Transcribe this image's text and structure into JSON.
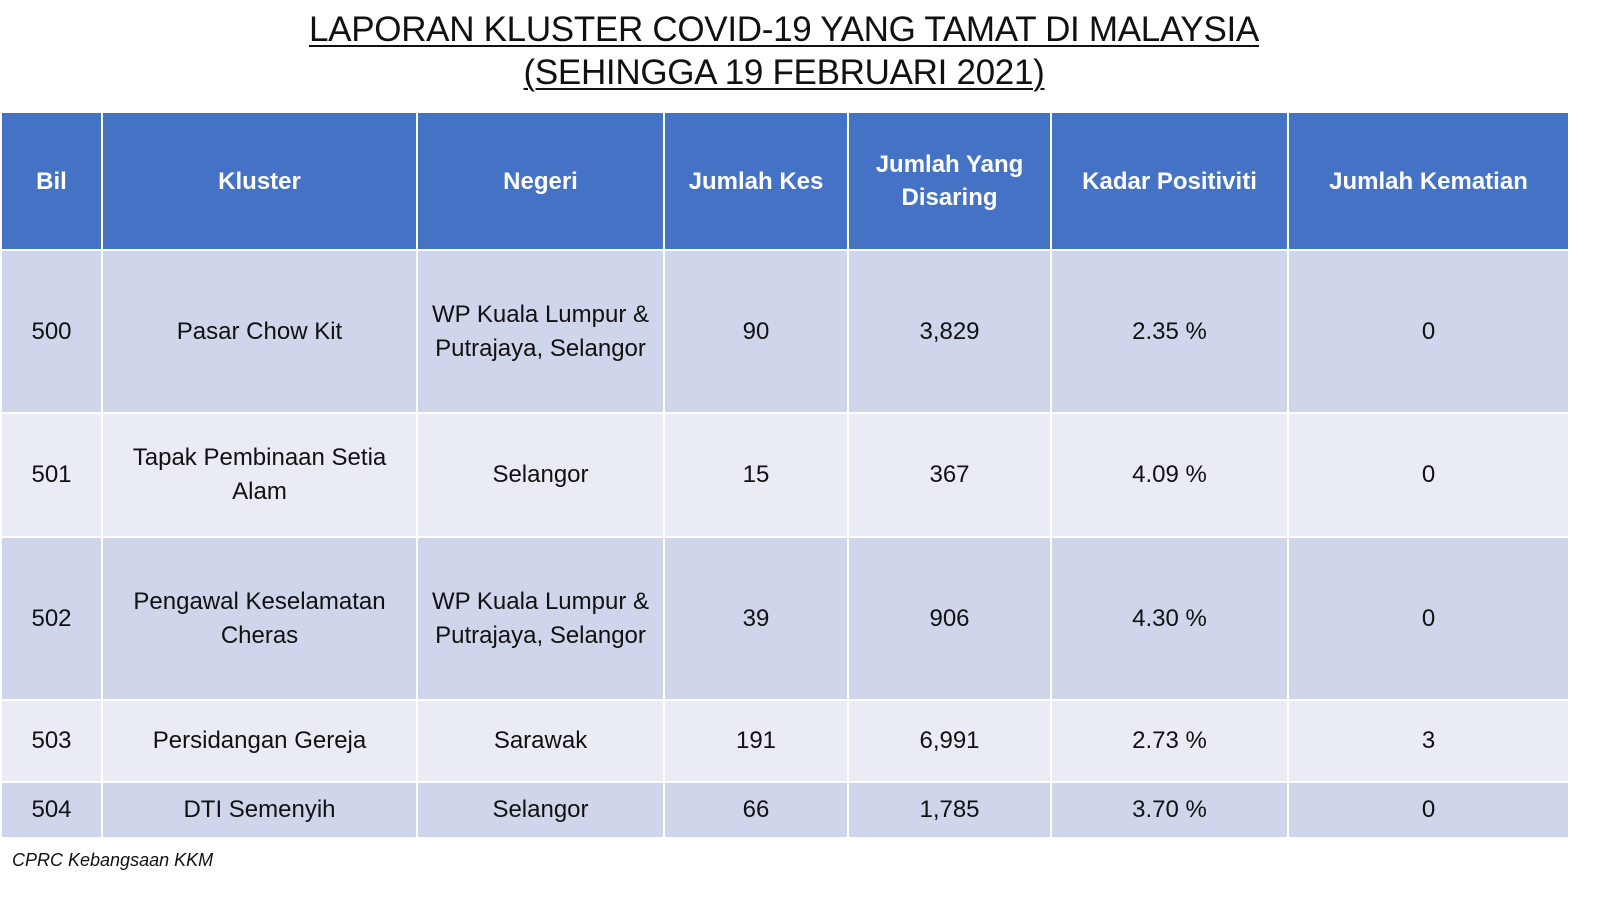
{
  "title": {
    "line1": "LAPORAN KLUSTER COVID-19 YANG TAMAT DI MALAYSIA",
    "line2": "(SEHINGGA 19 FEBRUARI 2021)"
  },
  "table": {
    "headers": {
      "bil": "Bil",
      "kluster": "Kluster",
      "negeri": "Negeri",
      "jumlah_kes": "Jumlah Kes",
      "jumlah_disaring": "Jumlah Yang Disaring",
      "kadar_positiviti": "Kadar Positiviti",
      "jumlah_kematian": "Jumlah Kematian"
    },
    "rows": [
      {
        "bil": "500",
        "kluster": "Pasar Chow Kit",
        "negeri": "WP Kuala Lumpur & Putrajaya, Selangor",
        "jumlah_kes": "90",
        "jumlah_disaring": "3,829",
        "kadar_positiviti": "2.35 %",
        "jumlah_kematian": "0"
      },
      {
        "bil": "501",
        "kluster": "Tapak Pembinaan Setia Alam",
        "negeri": "Selangor",
        "jumlah_kes": "15",
        "jumlah_disaring": "367",
        "kadar_positiviti": "4.09 %",
        "jumlah_kematian": "0"
      },
      {
        "bil": "502",
        "kluster": "Pengawal Keselamatan Cheras",
        "negeri": "WP Kuala Lumpur & Putrajaya, Selangor",
        "jumlah_kes": "39",
        "jumlah_disaring": "906",
        "kadar_positiviti": "4.30 %",
        "jumlah_kematian": "0"
      },
      {
        "bil": "503",
        "kluster": "Persidangan Gereja",
        "negeri": "Sarawak",
        "jumlah_kes": "191",
        "jumlah_disaring": "6,991",
        "kadar_positiviti": "2.73 %",
        "jumlah_kematian": "3"
      },
      {
        "bil": "504",
        "kluster": "DTI Semenyih",
        "negeri": "Selangor",
        "jumlah_kes": "66",
        "jumlah_disaring": "1,785",
        "kadar_positiviti": "3.70 %",
        "jumlah_kematian": "0"
      }
    ]
  },
  "footer": "CPRC Kebangsaan KKM",
  "colors": {
    "header_bg": "#4472c4",
    "row_dark": "#cfd5ea",
    "row_light": "#e9ebf5"
  }
}
